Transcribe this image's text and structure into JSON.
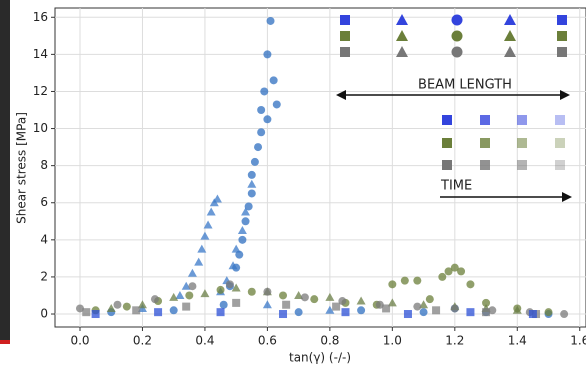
{
  "chart_data": {
    "type": "scatter",
    "xlabel": "tan(γ) (-/-)",
    "ylabel": "Shear stress [MPa]",
    "annotations": [
      "BEAM LENGTH",
      "TIME"
    ],
    "xlim": [
      -0.08,
      1.62
    ],
    "ylim": [
      -0.7,
      16.5
    ],
    "xticks": [
      {
        "value": 0,
        "label": "0.0"
      },
      0.2,
      0.4,
      0.6,
      0.8,
      {
        "value": 1,
        "label": "1.0"
      },
      1.2,
      1.4,
      1.6
    ],
    "yticks": [
      0,
      2,
      4,
      6,
      8,
      10,
      12,
      14,
      16
    ],
    "grid": true,
    "series": [
      {
        "color": "#2f6fc0",
        "marker": "circle",
        "x": [
          0.46,
          0.48,
          0.5,
          0.51,
          0.52,
          0.53,
          0.54,
          0.55,
          0.55,
          0.56,
          0.57,
          0.58,
          0.58,
          0.59,
          0.6,
          0.61,
          0.62,
          0.6,
          0.63,
          0.1,
          0.3,
          0.7,
          0.9,
          1.1,
          1.3,
          1.5,
          1.2
        ],
        "values": [
          0.5,
          1.5,
          2.5,
          3.2,
          4,
          5,
          5.8,
          6.5,
          7.5,
          8.2,
          9,
          9.8,
          11,
          12,
          14,
          15.8,
          12.6,
          10.5,
          11.3,
          0.1,
          0.2,
          0.1,
          0.2,
          0.1,
          0.1,
          0,
          0.3
        ]
      },
      {
        "color": "#3a78c8",
        "marker": "triangle",
        "x": [
          0.32,
          0.34,
          0.36,
          0.38,
          0.39,
          0.4,
          0.41,
          0.42,
          0.43,
          0.44,
          0.45,
          0.47,
          0.49,
          0.5,
          0.52,
          0.53,
          0.55,
          0.2,
          0.6,
          0.8
        ],
        "values": [
          1,
          1.5,
          2.2,
          2.8,
          3.5,
          4.2,
          4.8,
          5.5,
          6,
          6.2,
          1.2,
          1.8,
          2.6,
          3.5,
          4.5,
          5.5,
          7,
          0.3,
          0.5,
          0.2
        ]
      },
      {
        "color": "#6b7f3a",
        "marker": "circle",
        "x": [
          0.05,
          0.15,
          0.25,
          0.35,
          0.45,
          0.55,
          0.65,
          0.75,
          0.85,
          0.95,
          1.0,
          1.04,
          1.08,
          1.12,
          1.16,
          1.18,
          1.2,
          1.22,
          1.25,
          1.3,
          1.4,
          1.5
        ],
        "values": [
          0.2,
          0.4,
          0.7,
          1,
          1.3,
          1.2,
          1,
          0.8,
          0.6,
          0.5,
          1.6,
          1.8,
          1.8,
          0.8,
          2,
          2.3,
          2.5,
          2.3,
          1.6,
          0.6,
          0.3,
          0.1
        ]
      },
      {
        "color": "#6a7d45",
        "marker": "triangle",
        "x": [
          0.1,
          0.2,
          0.3,
          0.4,
          0.5,
          0.6,
          0.7,
          0.8,
          0.9,
          1.0,
          1.1,
          1.2,
          1.3,
          1.4
        ],
        "values": [
          0.3,
          0.5,
          0.9,
          1.1,
          1.4,
          1.2,
          1,
          0.9,
          0.7,
          0.6,
          0.5,
          0.4,
          0.3,
          0.2
        ]
      },
      {
        "color": "#7a7a7a",
        "marker": "circle",
        "x": [
          0.0,
          0.12,
          0.24,
          0.36,
          0.48,
          0.6,
          0.72,
          0.84,
          0.96,
          1.08,
          1.2,
          1.32,
          1.44,
          1.55
        ],
        "values": [
          0.3,
          0.5,
          0.8,
          1.5,
          1.6,
          1.2,
          0.9,
          0.7,
          0.5,
          0.4,
          0.3,
          0.2,
          0.1,
          0
        ]
      },
      {
        "color": "#808080",
        "marker": "square",
        "x": [
          0.02,
          0.18,
          0.34,
          0.5,
          0.66,
          0.82,
          0.98,
          1.14,
          1.3,
          1.46
        ],
        "values": [
          0.1,
          0.2,
          0.4,
          0.6,
          0.5,
          0.4,
          0.3,
          0.2,
          0.1,
          0
        ]
      },
      {
        "color": "#2b4fd6",
        "marker": "square",
        "x": [
          0.05,
          0.25,
          0.45,
          0.65,
          0.85,
          1.05,
          1.25,
          1.45
        ],
        "values": [
          0,
          0.1,
          0.1,
          0,
          0.1,
          0,
          0.1,
          0
        ]
      }
    ]
  }
}
